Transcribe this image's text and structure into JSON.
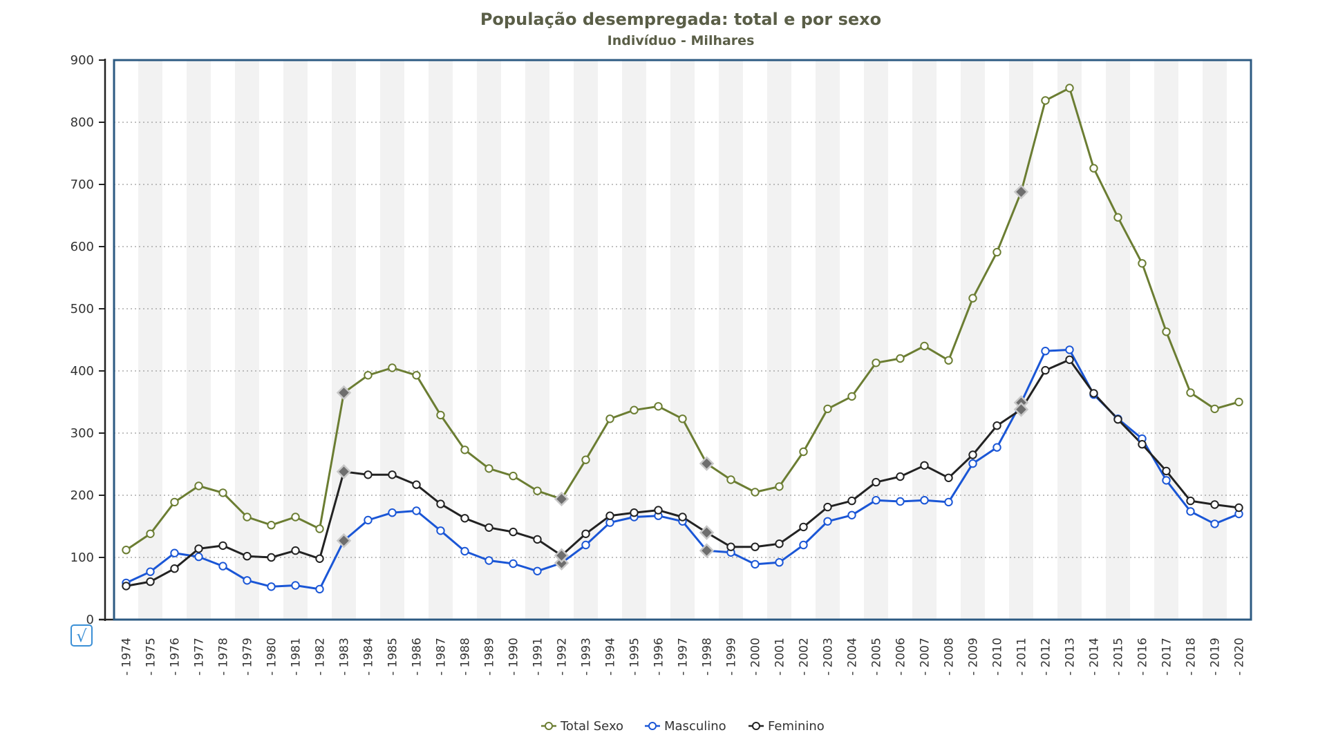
{
  "chart_data": {
    "type": "line",
    "title": "População desempregada: total e por sexo",
    "subtitle": "Indivíduo - Milhares",
    "xlabel": "",
    "ylabel": "",
    "ylim": [
      0,
      900
    ],
    "yticks": [
      0,
      100,
      200,
      300,
      400,
      500,
      600,
      700,
      800,
      900
    ],
    "grid": "horizontal dotted",
    "legend_position": "bottom-center",
    "categories": [
      "1974",
      "1975",
      "1976",
      "1977",
      "1978",
      "1979",
      "1980",
      "1981",
      "1982",
      "1983",
      "1984",
      "1985",
      "1986",
      "1987",
      "1988",
      "1989",
      "1990",
      "1991",
      "1992",
      "1993",
      "1994",
      "1995",
      "1996",
      "1997",
      "1998",
      "1999",
      "2000",
      "2001",
      "2002",
      "2003",
      "2004",
      "2005",
      "2006",
      "2007",
      "2008",
      "2009",
      "2010",
      "2011",
      "2012",
      "2013",
      "2014",
      "2015",
      "2016",
      "2017",
      "2018",
      "2019",
      "2020"
    ],
    "series": [
      {
        "name": "Total Sexo",
        "color": "#6b7d32",
        "values": [
          112,
          138,
          189,
          215,
          204,
          165,
          152,
          165,
          146,
          365,
          393,
          405,
          393,
          329,
          273,
          243,
          231,
          207,
          194,
          257,
          323,
          337,
          343,
          323,
          251,
          225,
          205,
          214,
          270,
          339,
          359,
          413,
          420,
          440,
          417,
          517,
          591,
          688,
          835,
          855,
          726,
          647,
          573,
          463,
          365,
          339,
          350
        ]
      },
      {
        "name": "Masculino",
        "color": "#1a56d6",
        "values": [
          59,
          77,
          107,
          101,
          86,
          63,
          53,
          55,
          49,
          127,
          160,
          172,
          175,
          143,
          110,
          95,
          90,
          78,
          91,
          120,
          156,
          165,
          167,
          158,
          111,
          108,
          89,
          92,
          120,
          158,
          168,
          192,
          190,
          192,
          189,
          251,
          277,
          349,
          432,
          434,
          362,
          323,
          291,
          224,
          174,
          154,
          170
        ]
      },
      {
        "name": "Feminino",
        "color": "#222222",
        "values": [
          54,
          61,
          82,
          114,
          119,
          102,
          100,
          111,
          98,
          238,
          233,
          233,
          217,
          186,
          163,
          148,
          141,
          129,
          103,
          138,
          167,
          172,
          176,
          165,
          140,
          117,
          117,
          122,
          149,
          181,
          191,
          221,
          230,
          248,
          228,
          265,
          312,
          338,
          401,
          418,
          364,
          322,
          282,
          239,
          191,
          185,
          180
        ]
      }
    ],
    "annotations": [
      {
        "category": "1983",
        "marker": "diamond"
      },
      {
        "category": "1992",
        "marker": "diamond"
      },
      {
        "category": "1998",
        "marker": "diamond"
      },
      {
        "category": "2011",
        "marker": "diamond"
      }
    ]
  },
  "toolbar": {
    "toggle_symbol": "√"
  }
}
